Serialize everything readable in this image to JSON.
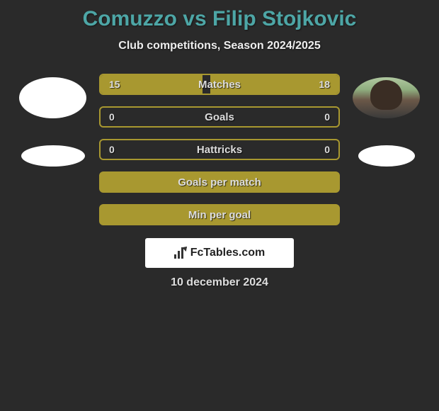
{
  "title": "Comuzzo vs Filip Stojkovic",
  "subtitle": "Club competitions, Season 2024/2025",
  "date": "10 december 2024",
  "watermark": "FcTables.com",
  "colors": {
    "background": "#2a2a2a",
    "accent": "#a89830",
    "title_color": "#4da6a6",
    "text_color": "#ddd"
  },
  "stats": [
    {
      "label": "Matches",
      "left_value": "15",
      "right_value": "18",
      "left_fill_pct": 43,
      "right_fill_pct": 54,
      "has_values": true
    },
    {
      "label": "Goals",
      "left_value": "0",
      "right_value": "0",
      "left_fill_pct": 0,
      "right_fill_pct": 0,
      "has_values": true
    },
    {
      "label": "Hattricks",
      "left_value": "0",
      "right_value": "0",
      "left_fill_pct": 0,
      "right_fill_pct": 0,
      "has_values": true
    },
    {
      "label": "Goals per match",
      "left_value": "",
      "right_value": "",
      "left_fill_pct": 0,
      "right_fill_pct": 0,
      "has_values": false
    },
    {
      "label": "Min per goal",
      "left_value": "",
      "right_value": "",
      "left_fill_pct": 0,
      "right_fill_pct": 0,
      "has_values": false
    }
  ]
}
